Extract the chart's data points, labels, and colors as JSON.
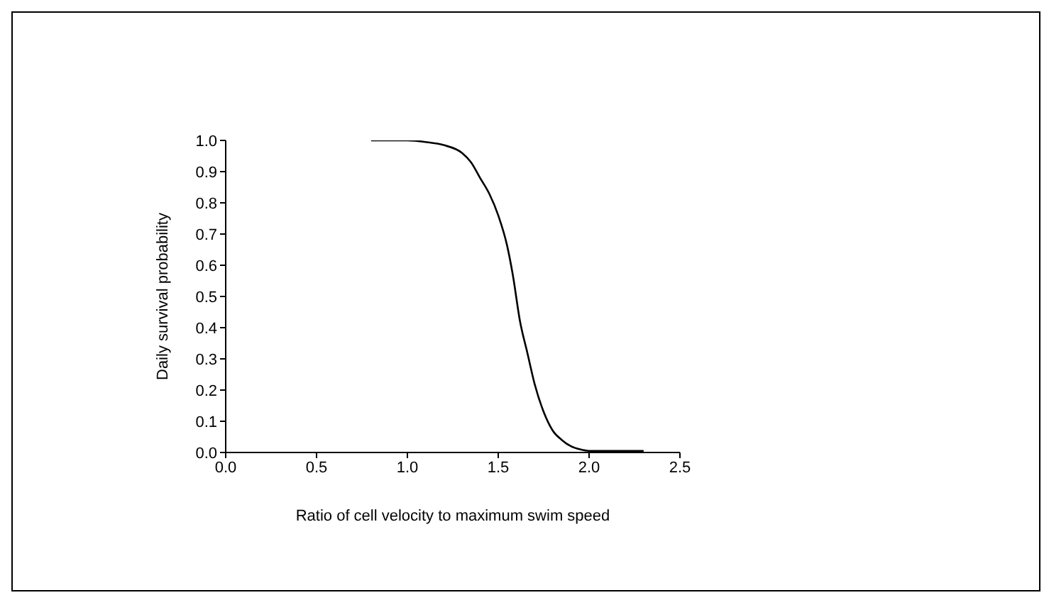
{
  "chart_data": {
    "type": "line",
    "xlabel": "Ratio of cell velocity to maximum swim speed",
    "ylabel": "Daily survival probability",
    "x": [
      0.8,
      0.9,
      1.0,
      1.1,
      1.2,
      1.3,
      1.35,
      1.4,
      1.45,
      1.5,
      1.55,
      1.58,
      1.62,
      1.66,
      1.7,
      1.75,
      1.8,
      1.85,
      1.9,
      1.95,
      2.0,
      2.1,
      2.2,
      2.3
    ],
    "series": [
      {
        "color": "#000000",
        "values": [
          1.0,
          1.0,
          1.0,
          0.995,
          0.985,
          0.96,
          0.93,
          0.88,
          0.83,
          0.76,
          0.66,
          0.57,
          0.42,
          0.32,
          0.22,
          0.13,
          0.07,
          0.04,
          0.02,
          0.01,
          0.005,
          0.005,
          0.005,
          0.005
        ]
      }
    ],
    "xlim": [
      0,
      2.5
    ],
    "xticks": [
      {
        "value": 0,
        "label": "0.0"
      },
      0.5,
      {
        "value": 1,
        "label": "1.0"
      },
      1.5,
      {
        "value": 2,
        "label": "2.0"
      },
      2.5
    ],
    "ylim": [
      0,
      1
    ],
    "yticks": [
      {
        "value": 0,
        "label": "0.0"
      },
      0.1,
      0.2,
      0.3,
      0.4,
      0.5,
      0.6,
      0.7,
      0.8,
      0.9,
      {
        "value": 1,
        "label": "1.0"
      }
    ],
    "grid": false,
    "marker": "none",
    "line_style": "solid",
    "legend": false
  }
}
